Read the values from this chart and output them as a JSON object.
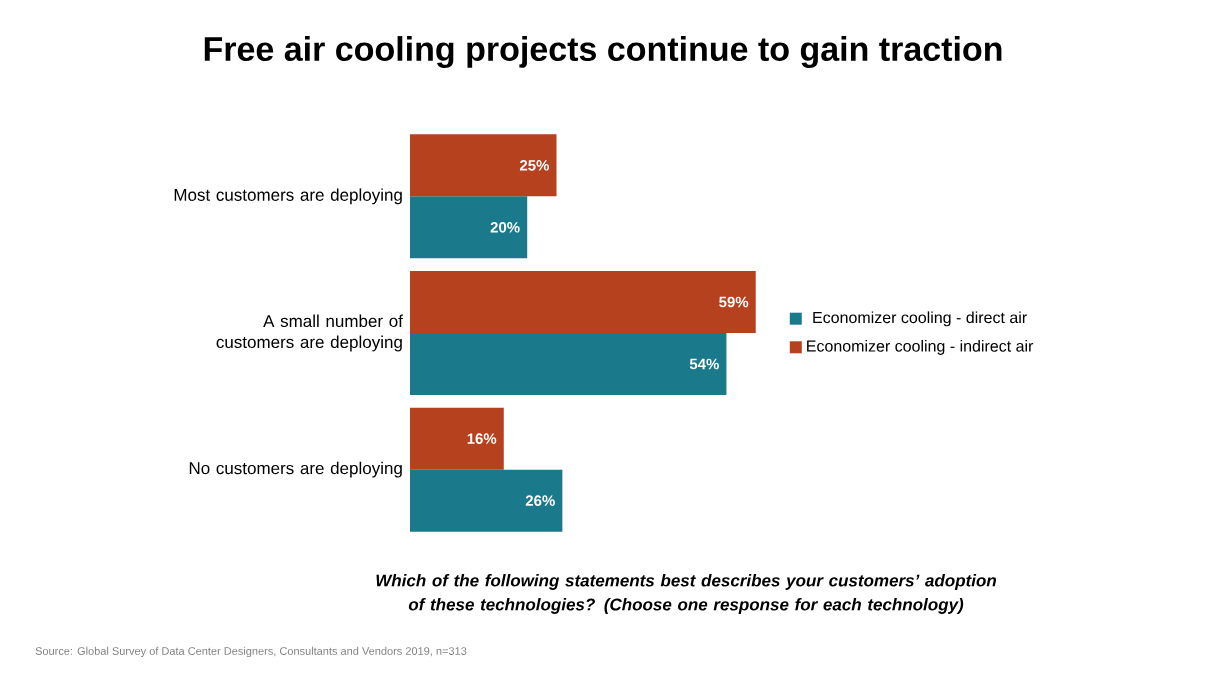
{
  "chart_data": {
    "type": "bar",
    "orientation": "horizontal",
    "title": "Free air cooling projects continue to gain traction",
    "categories": [
      "Most customers are deploying",
      "A small number of customers are deploying",
      "No customers are deploying"
    ],
    "series": [
      {
        "name": "Economizer cooling - direct air",
        "color": "#1a7a8c",
        "values": [
          20,
          54,
          26
        ],
        "value_labels": [
          "20%",
          "54%",
          "26%"
        ]
      },
      {
        "name": "Economizer cooling - indirect air",
        "color": "#b5411f",
        "values": [
          25,
          59,
          16
        ],
        "value_labels": [
          "25%",
          "59%",
          "16%"
        ]
      }
    ],
    "legend": "right",
    "annotations": [
      "Which of the following statements best describes your customers’ adoption of these technologies? (Choose one response for each technology)",
      "Source: Global Survey of Data Center Designers, Consultants and Vendors 2019, n=313"
    ]
  }
}
